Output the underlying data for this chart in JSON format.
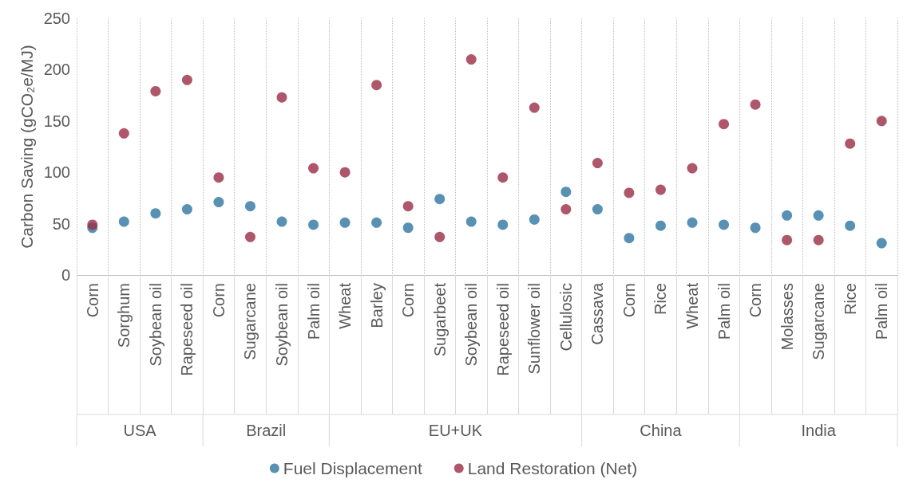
{
  "chart_data": {
    "type": "scatter",
    "ylabel": "Carbon Saving (gCO₂e/MJ)",
    "categories": [
      "Corn",
      "Sorghum",
      "Soybean oil",
      "Rapeseed oil",
      "Corn",
      "Sugarcane",
      "Soybean oil",
      "Palm oil",
      "Wheat",
      "Barley",
      "Corn",
      "Sugarbeet",
      "Soybean oil",
      "Rapeseed oil",
      "Sunflower oil",
      "Cellulosic",
      "Cassava",
      "Corn",
      "Rice",
      "Wheat",
      "Palm oil",
      "Corn",
      "Molasses",
      "Sugarcane",
      "Rice",
      "Palm oil"
    ],
    "annotations": [
      "USA",
      "Brazil",
      "EU+UK",
      "China",
      "India"
    ],
    "series": [
      {
        "name": "Fuel Displacement",
        "color": "#2e75a0",
        "values": [
          46,
          52,
          60,
          64,
          71,
          67,
          52,
          49,
          51,
          51,
          46,
          74,
          52,
          49,
          54,
          81,
          64,
          36,
          48,
          51,
          49,
          46,
          58,
          58,
          48,
          31
        ]
      },
      {
        "name": "Land Restoration (Net)",
        "color": "#9b2d45",
        "values": [
          49,
          138,
          179,
          190,
          95,
          37,
          173,
          104,
          100,
          185,
          67,
          37,
          210,
          95,
          163,
          64,
          109,
          80,
          83,
          104,
          147,
          166,
          34,
          34,
          128,
          150
        ]
      }
    ],
    "ylim": [
      0,
      250
    ],
    "yticks": [
      0,
      50,
      100,
      150,
      200,
      250
    ],
    "grid": "x",
    "legend": "bottom",
    "marker": "circle"
  }
}
